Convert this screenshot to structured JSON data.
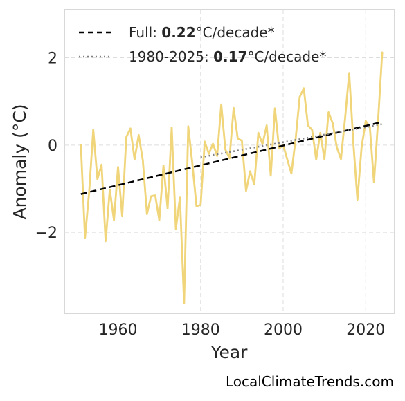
{
  "chart_data": {
    "type": "line",
    "xlabel": "Year",
    "ylabel": "Anomaly (°C)",
    "xlim": [
      1947,
      2027
    ],
    "ylim": [
      -3.85,
      3.1
    ],
    "xticks": [
      1960,
      1980,
      2000,
      2020
    ],
    "yticks": [
      -2,
      0,
      2
    ],
    "ytick_labels": [
      "−2",
      "0",
      "2"
    ],
    "grid": true,
    "legend": {
      "placement": "top-left",
      "entries": [
        {
          "prefix": "Full: ",
          "value": "0.22",
          "suffix": "°C/decade*"
        },
        {
          "prefix": "1980-2025: ",
          "value": "0.17",
          "suffix": "°C/decade*"
        }
      ]
    },
    "series": [
      {
        "type": "line",
        "color": "#f0d57a",
        "x": [
          1951,
          1952,
          1953,
          1954,
          1955,
          1956,
          1957,
          1958,
          1959,
          1960,
          1961,
          1962,
          1963,
          1964,
          1965,
          1966,
          1967,
          1968,
          1969,
          1970,
          1971,
          1972,
          1973,
          1974,
          1975,
          1976,
          1977,
          1978,
          1979,
          1980,
          1981,
          1982,
          1983,
          1984,
          1985,
          1986,
          1987,
          1988,
          1989,
          1990,
          1991,
          1992,
          1993,
          1994,
          1995,
          1996,
          1997,
          1998,
          1999,
          2000,
          2001,
          2002,
          2003,
          2004,
          2005,
          2006,
          2007,
          2008,
          2009,
          2010,
          2011,
          2012,
          2013,
          2014,
          2015,
          2016,
          2017,
          2018,
          2019,
          2020,
          2021,
          2022,
          2023,
          2024
        ],
        "y": [
          0.0,
          -2.12,
          -1.07,
          0.35,
          -0.78,
          -0.45,
          -2.2,
          -1.02,
          -1.72,
          -0.5,
          -1.63,
          0.18,
          0.38,
          -0.33,
          0.23,
          -0.35,
          -1.58,
          -1.17,
          -1.15,
          -1.72,
          -0.47,
          -1.45,
          0.4,
          -1.92,
          -1.2,
          -3.62,
          0.43,
          -0.42,
          -1.4,
          -1.37,
          0.08,
          -0.2,
          0.03,
          -0.25,
          0.93,
          -0.1,
          -0.3,
          0.85,
          0.15,
          0.1,
          -1.05,
          -0.6,
          -0.9,
          0.28,
          0.02,
          0.45,
          -0.7,
          0.84,
          -0.08,
          0.0,
          -0.33,
          -0.65,
          0.12,
          1.1,
          1.3,
          0.45,
          0.35,
          -0.33,
          0.28,
          -0.32,
          0.75,
          0.5,
          -0.05,
          -0.32,
          0.6,
          1.65,
          0.05,
          -1.25,
          -0.05,
          0.55,
          0.42,
          -0.85,
          0.55,
          2.12
        ]
      },
      {
        "type": "trend",
        "style": "dashed",
        "color": "#000000",
        "x": [
          1951,
          2024
        ],
        "y": [
          -1.12,
          0.53
        ]
      },
      {
        "type": "trend",
        "style": "dotted",
        "color": "#808080",
        "x": [
          1980,
          2024
        ],
        "y": [
          -0.28,
          0.48
        ]
      }
    ]
  },
  "source": "LocalClimateTrends.com"
}
